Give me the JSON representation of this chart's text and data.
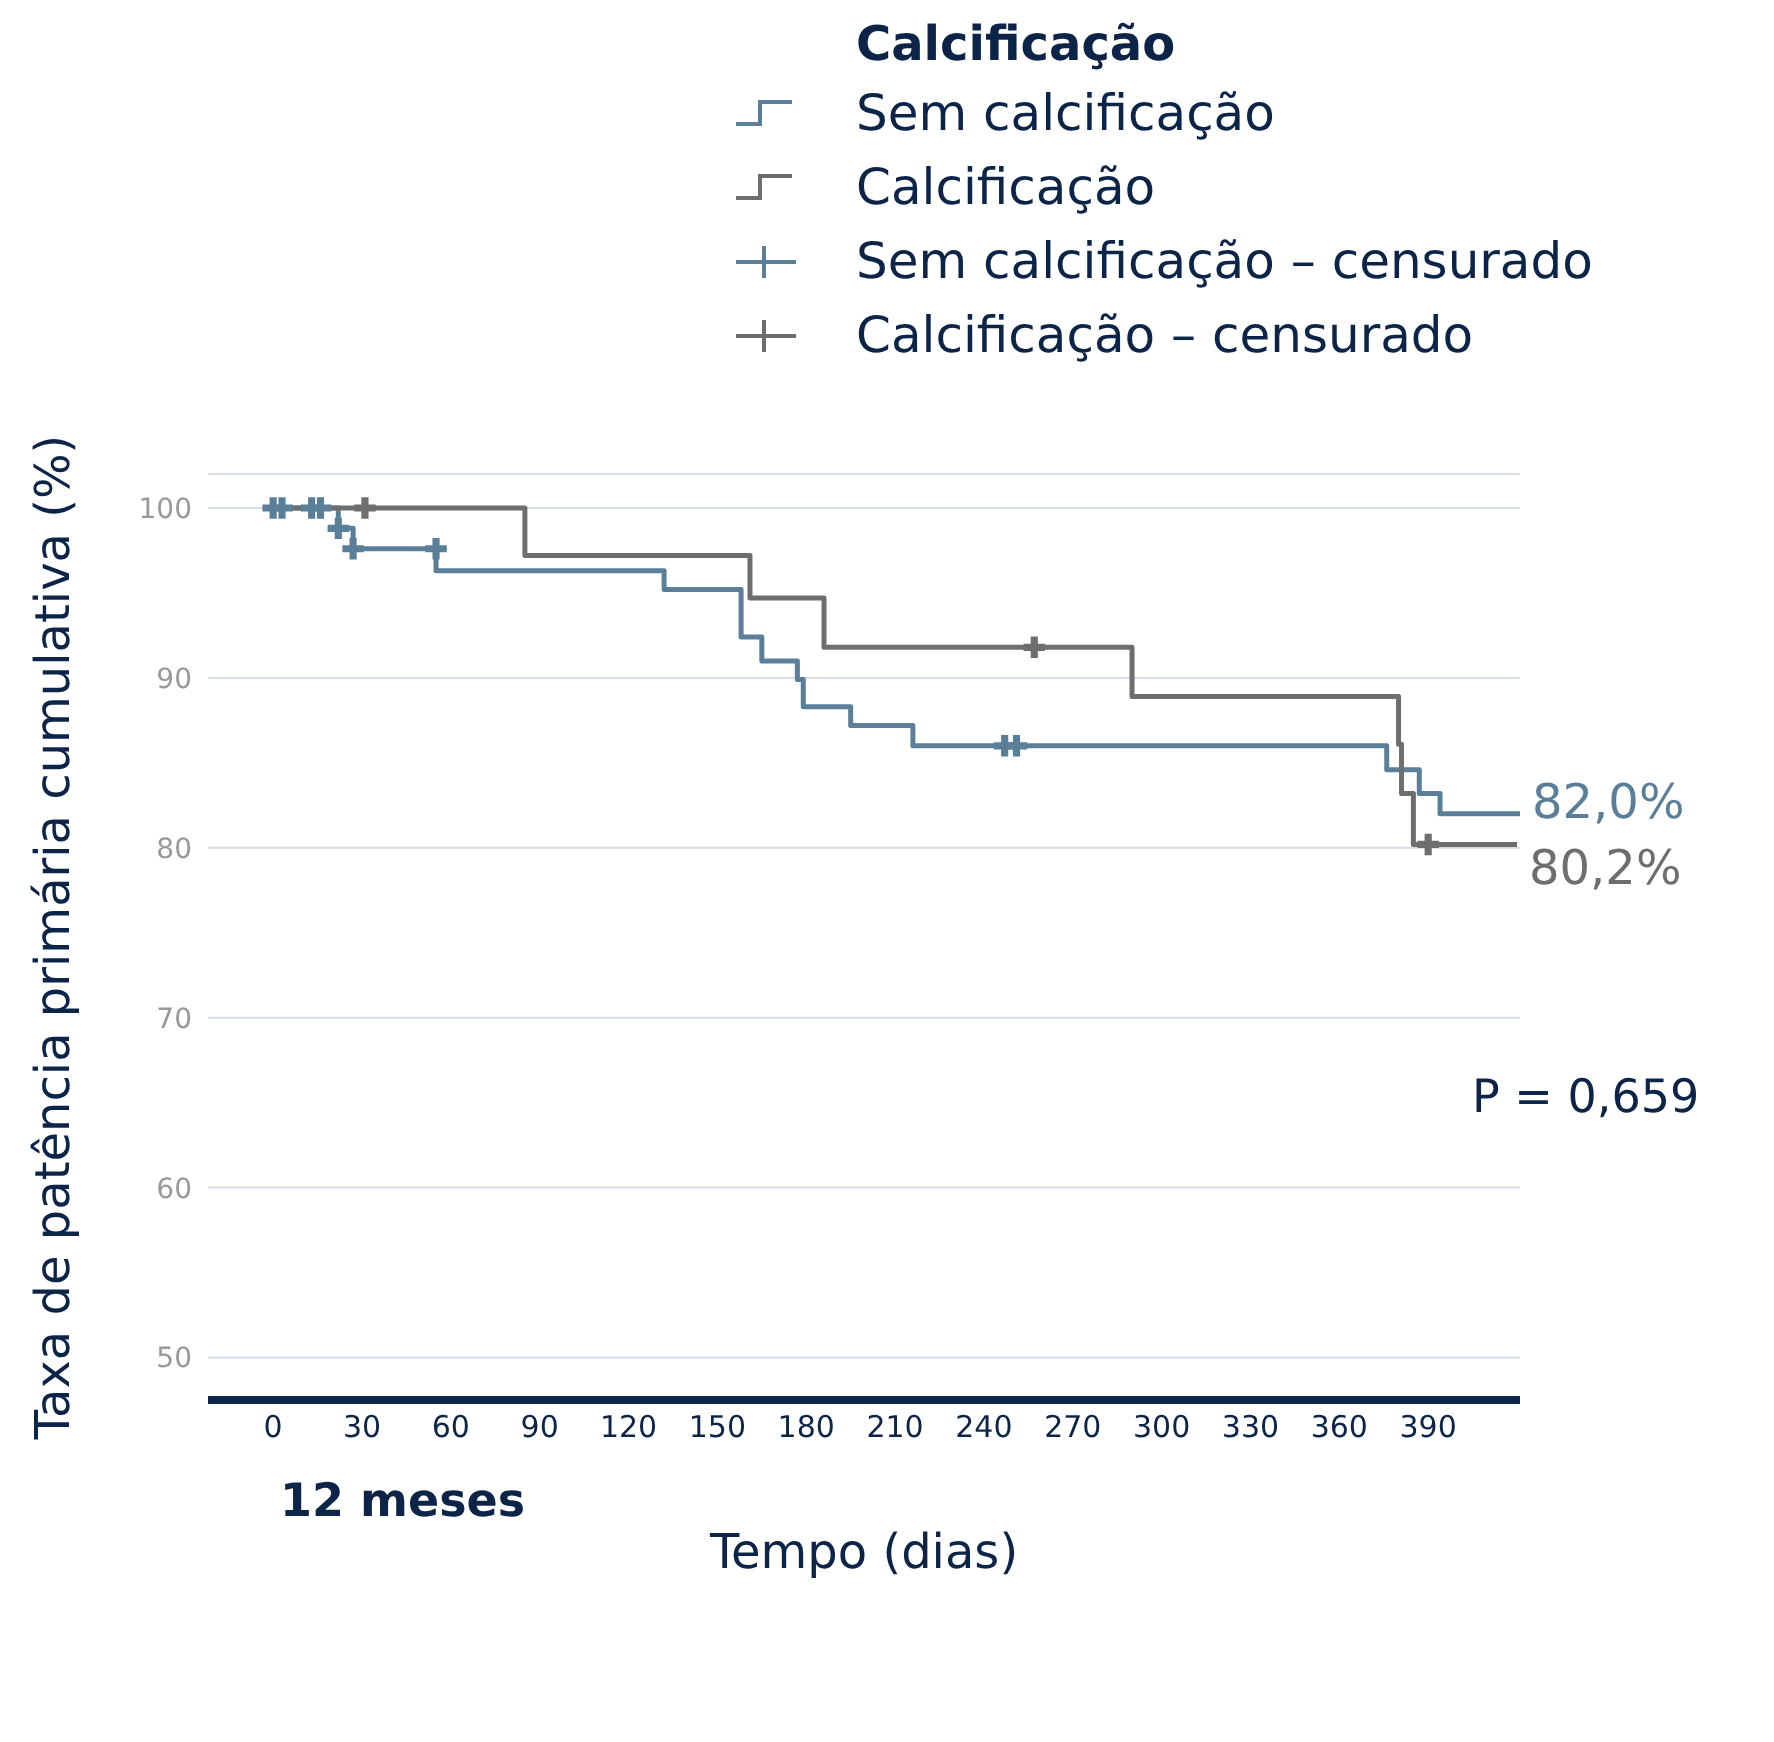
{
  "chart_data": {
    "type": "step",
    "xlabel": "Tempo (dias)",
    "ylabel": "Taxa de patência primária cumulativa (%)",
    "legend_title": "Calcificação",
    "legend": "top right",
    "grid": "y",
    "xlim": [
      -22,
      421
    ],
    "xticks": [
      0,
      30,
      60,
      90,
      120,
      150,
      180,
      210,
      240,
      270,
      300,
      330,
      360,
      390
    ],
    "ylim": [
      47.5,
      102
    ],
    "yticks": [
      50,
      60,
      70,
      80,
      90,
      100
    ],
    "series": [
      {
        "name": "Sem calcificação",
        "color": "#5b7f99",
        "x": [
          0,
          22,
          27,
          55,
          132,
          158,
          165,
          177,
          179,
          195,
          216,
          376,
          387,
          394,
          421
        ],
        "values": [
          100,
          98.8,
          97.6,
          96.3,
          95.2,
          92.4,
          91,
          89.9,
          88.3,
          87.2,
          86,
          84.6,
          83.2,
          82,
          82
        ]
      },
      {
        "name": "Calcificação",
        "color": "#6e6e6e",
        "x": [
          0,
          85,
          161,
          186,
          290,
          380,
          381,
          385,
          420
        ],
        "values": [
          100,
          97.2,
          94.7,
          91.8,
          88.9,
          86.1,
          83.2,
          80.2,
          80.2
        ]
      },
      {
        "name": "Sem calcificação – censurado",
        "type": "scatter",
        "marker": "cross",
        "color": "#5b7f99",
        "x": [
          0,
          3,
          13,
          16,
          22,
          27,
          55,
          247,
          251
        ],
        "values": [
          100,
          100,
          100,
          100,
          98.8,
          97.6,
          97.6,
          86,
          86
        ]
      },
      {
        "name": "Calcificação – censurado",
        "type": "scatter",
        "marker": "cross",
        "color": "#6e6e6e",
        "x": [
          31,
          257,
          390
        ],
        "values": [
          100,
          91.8,
          80.2
        ]
      }
    ],
    "annotations": [
      {
        "text": "82,0%",
        "x": 421,
        "y": 82
      },
      {
        "text": "80,2%",
        "x": 420,
        "y": 80.2
      },
      "P = 0,659",
      "12 meses"
    ]
  }
}
